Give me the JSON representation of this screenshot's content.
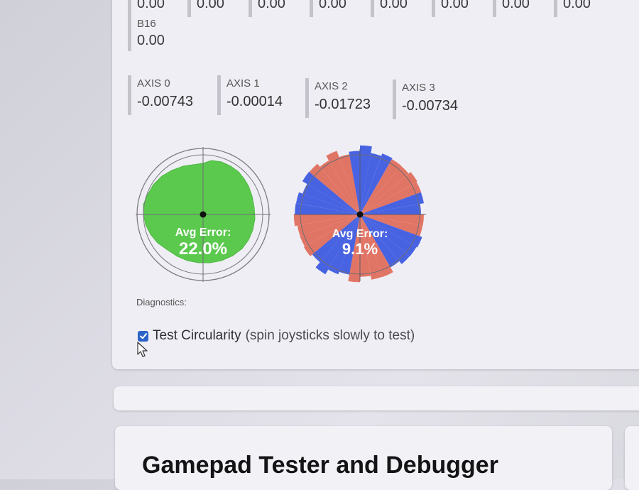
{
  "buttons": {
    "row_values": [
      "0.00",
      "0.00",
      "0.00",
      "0.00",
      "0.00",
      "0.00",
      "0.00",
      "0.00"
    ],
    "b16": {
      "label": "B16",
      "value": "0.00"
    }
  },
  "axes": [
    {
      "label": "AXIS 0",
      "value": "-0.00743"
    },
    {
      "label": "AXIS 1",
      "value": "-0.00014"
    },
    {
      "label": "AXIS 2",
      "value": "-0.01723"
    },
    {
      "label": "AXIS 3",
      "value": "-0.00734"
    }
  ],
  "sticks": {
    "left": {
      "caption": "Avg Error:",
      "value": "22.0%",
      "color": "#5bc94e"
    },
    "right": {
      "caption": "Avg Error:",
      "value": "9.1%",
      "color_a": "#e06a58",
      "color_b": "#3a57e0"
    }
  },
  "diagnostics": {
    "label": "Diagnostics:",
    "test_circularity_label": "Test Circularity",
    "test_circularity_hint": "(spin joysticks slowly to test)",
    "checked": true
  },
  "page_title": "Gamepad Tester and Debugger",
  "icons": {
    "checkbox": "check-icon",
    "cursor": "mouse-pointer-icon"
  }
}
